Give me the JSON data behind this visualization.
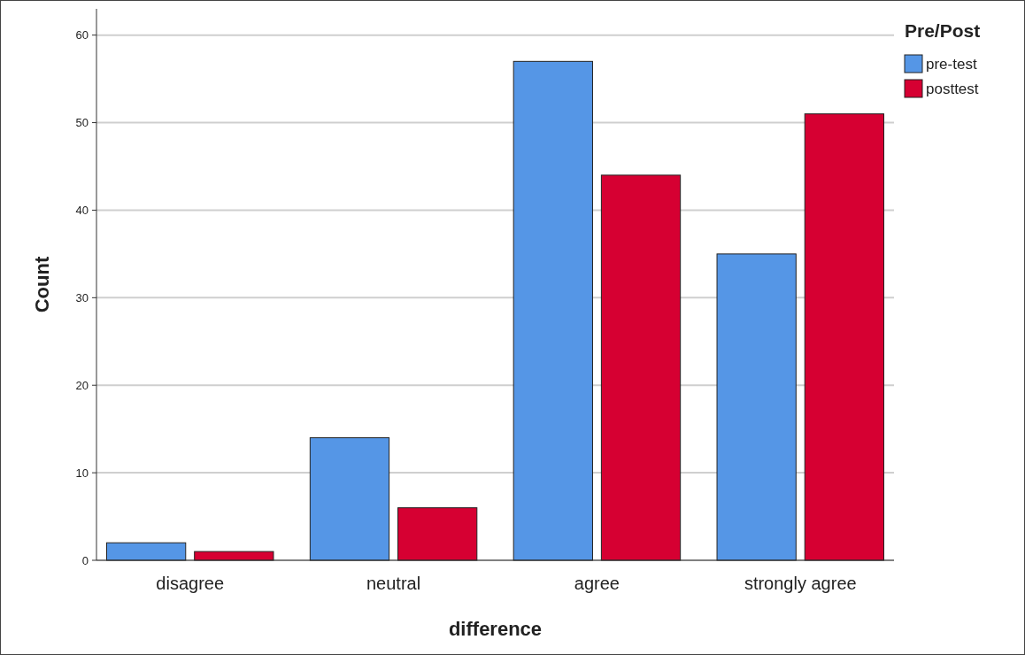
{
  "chart_data": {
    "type": "bar",
    "xlabel": "difference",
    "ylabel": "Count",
    "legend_title": "Pre/Post",
    "categories": [
      "disagree",
      "neutral",
      "agree",
      "strongly agree"
    ],
    "series": [
      {
        "name": "pre-test",
        "color": "#5596e6",
        "values": [
          2,
          14,
          57,
          35
        ]
      },
      {
        "name": "posttest",
        "color": "#d60032",
        "values": [
          1,
          6,
          44,
          51
        ]
      }
    ],
    "ylim": [
      0,
      63
    ],
    "yticks": [
      0,
      10,
      20,
      30,
      40,
      50,
      60
    ],
    "grid": "y",
    "legend": "top right"
  }
}
